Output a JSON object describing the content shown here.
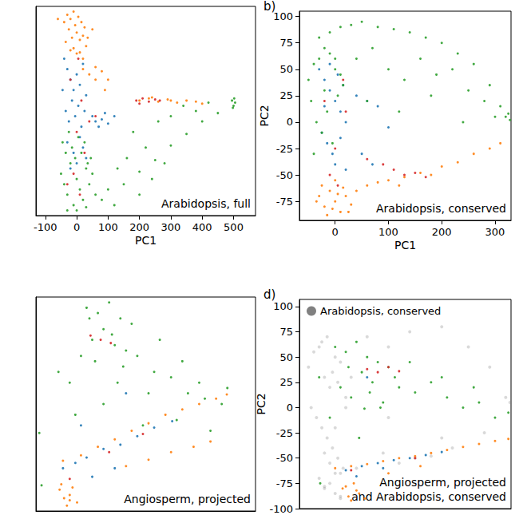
{
  "chart_data": [
    {
      "type": "scatter",
      "x_label": "PC1",
      "annotation": "Arabidopsis, full",
      "xlim": [
        -130,
        570
      ],
      "ylim": [
        -100,
        100
      ],
      "xticks": [
        -100,
        0,
        100,
        200,
        300,
        400,
        500
      ],
      "tick_labels": "x",
      "grid": false,
      "series": [
        {
          "color": "#ff7f0e",
          "x": [
            -40,
            -30,
            -25,
            -20,
            -15,
            -10,
            -5,
            0,
            5,
            10,
            15,
            20,
            25,
            30,
            -35,
            -20,
            -10,
            0,
            10,
            20,
            35,
            -60,
            50,
            20,
            40,
            60,
            80,
            100,
            60,
            90,
            200,
            230,
            260,
            290,
            320,
            350,
            380,
            400,
            240,
            300
          ],
          "values": [
            85,
            92,
            78,
            88,
            70,
            95,
            82,
            75,
            90,
            68,
            85,
            72,
            80,
            62,
            66,
            58,
            60,
            55,
            56,
            50,
            70,
            88,
            78,
            40,
            35,
            42,
            38,
            30,
            30,
            20,
            10,
            12,
            9,
            11,
            8,
            10,
            9,
            7,
            13,
            10
          ]
        },
        {
          "color": "#1f77b4",
          "x": [
            -40,
            -30,
            -20,
            -10,
            0,
            10,
            20,
            30,
            -35,
            -25,
            -15,
            -5,
            5,
            15,
            25,
            -30,
            -10,
            10,
            30,
            50,
            60,
            80,
            100,
            120,
            70,
            90,
            -20,
            0,
            20,
            -45
          ],
          "values": [
            50,
            40,
            30,
            20,
            35,
            25,
            45,
            15,
            0,
            -10,
            10,
            -5,
            5,
            -15,
            0,
            -30,
            -40,
            -25,
            -45,
            -5,
            -10,
            -8,
            -12,
            -5,
            -15,
            -2,
            -55,
            -50,
            -35,
            20
          ]
        },
        {
          "color": "#d62728",
          "x": [
            -20,
            0,
            15,
            -10,
            25,
            40,
            -30,
            5,
            190,
            210,
            230,
            250,
            265,
            200,
            60,
            10
          ],
          "values": [
            30,
            -20,
            10,
            -60,
            -40,
            -10,
            -70,
            50,
            10,
            12,
            9,
            11,
            10,
            7,
            -5,
            -80
          ]
        },
        {
          "color": "#2ca02c",
          "x": [
            -50,
            -40,
            -30,
            -20,
            -10,
            0,
            10,
            20,
            30,
            40,
            50,
            60,
            -45,
            -35,
            -25,
            -15,
            -5,
            5,
            15,
            25,
            35,
            45,
            -30,
            0,
            30,
            80,
            100,
            120,
            150,
            200,
            250,
            300,
            350,
            400,
            450,
            180,
            220,
            260,
            300,
            340,
            380,
            420,
            160,
            200,
            240,
            280,
            130,
            495,
            500,
            505,
            498,
            502
          ],
          "values": [
            -60,
            -70,
            -80,
            -50,
            -90,
            -65,
            -75,
            -85,
            -55,
            -70,
            -60,
            -80,
            -30,
            -40,
            -20,
            -35,
            -45,
            -25,
            -40,
            -30,
            -50,
            -45,
            -95,
            -95,
            -92,
            -85,
            -75,
            -90,
            -70,
            -58,
            -47,
            -33,
            -22,
            -10,
            -2,
            -20,
            -35,
            -10,
            -5,
            5,
            0,
            8,
            -45,
            -80,
            -65,
            -50,
            -55,
            10,
            5,
            8,
            3,
            12
          ]
        }
      ]
    },
    {
      "type": "scatter",
      "title": "b)",
      "x_label": "PC1",
      "y_label": "PC2",
      "annotation": "Arabidopsis, conserved",
      "xlim": [
        -67,
        330
      ],
      "ylim": [
        -93,
        105
      ],
      "xticks": [
        0,
        100,
        200,
        300
      ],
      "yticks": [
        -75,
        -50,
        -25,
        0,
        25,
        50,
        75,
        100
      ],
      "grid": false,
      "series": [
        {
          "color": "#ff7f0e",
          "x": [
            -30,
            -20,
            -10,
            0,
            10,
            20,
            30,
            -25,
            -15,
            -5,
            5,
            15,
            25,
            -35,
            0,
            40,
            60,
            80,
            100,
            130,
            160,
            200,
            230,
            260,
            290,
            310,
            120,
            180
          ],
          "values": [
            -70,
            -80,
            -65,
            -75,
            -85,
            -70,
            -78,
            -60,
            -88,
            -82,
            -68,
            -62,
            -85,
            -75,
            -55,
            -65,
            -60,
            -57,
            -55,
            -52,
            -48,
            -42,
            -38,
            -30,
            -25,
            -20,
            -60,
            -50
          ]
        },
        {
          "color": "#1f77b4",
          "x": [
            -30,
            -20,
            -10,
            0,
            10,
            20,
            -25,
            -15,
            -5,
            5,
            15,
            -20,
            0,
            20,
            40,
            60,
            80,
            100,
            50,
            70,
            -10,
            10
          ],
          "values": [
            50,
            40,
            30,
            20,
            10,
            0,
            -10,
            -20,
            -30,
            45,
            35,
            15,
            -40,
            -45,
            25,
            20,
            15,
            -5,
            -30,
            -40,
            55,
            -15
          ]
        },
        {
          "color": "#d62728",
          "x": [
            -20,
            0,
            15,
            -10,
            20,
            90,
            110,
            130,
            150,
            170,
            60,
            5
          ],
          "values": [
            20,
            -25,
            40,
            -50,
            10,
            -40,
            -45,
            -50,
            -48,
            -52,
            -35,
            -60
          ]
        },
        {
          "color": "#2ca02c",
          "x": [
            -50,
            -40,
            -30,
            -20,
            -10,
            0,
            10,
            -45,
            -35,
            -25,
            -15,
            -5,
            5,
            15,
            -40,
            -20,
            0,
            -30,
            -10,
            10,
            30,
            50,
            80,
            110,
            140,
            170,
            200,
            230,
            260,
            290,
            40,
            70,
            100,
            130,
            160,
            190,
            220,
            250,
            280,
            310,
            320,
            325,
            328,
            60,
            120,
            180,
            240,
            300
          ],
          "values": [
            40,
            55,
            60,
            30,
            65,
            50,
            45,
            20,
            0,
            -10,
            10,
            -20,
            25,
            35,
            -30,
            70,
            60,
            80,
            85,
            90,
            92,
            95,
            90,
            88,
            85,
            80,
            75,
            65,
            55,
            35,
            60,
            70,
            50,
            40,
            60,
            45,
            50,
            30,
            20,
            15,
            5,
            8,
            2,
            20,
            10,
            25,
            0,
            5
          ]
        }
      ]
    },
    {
      "type": "scatter",
      "annotation": "Angiosperm, projected",
      "xlim": [
        -60,
        330
      ],
      "ylim": [
        -100,
        100
      ],
      "tick_labels": false,
      "grid": false,
      "series": [
        {
          "color": "#2ca02c",
          "x": [
            30,
            50,
            70,
            90,
            110,
            40,
            60,
            80,
            100,
            20,
            45,
            75,
            95,
            0,
            -20,
            120,
            150,
            180,
            210,
            240,
            270,
            280,
            10,
            60,
            130,
            160,
            200,
            230,
            -54,
            -50,
            35,
            85,
            140,
            190,
            250
          ],
          "values": [
            90,
            85,
            95,
            80,
            75,
            60,
            70,
            55,
            50,
            45,
            40,
            65,
            35,
            20,
            30,
            45,
            30,
            25,
            10,
            5,
            0,
            15,
            -10,
            0,
            -20,
            60,
            40,
            20,
            -27,
            -76,
            80,
            20,
            10,
            -15,
            -25
          ]
        },
        {
          "color": "#ff7f0e",
          "x": [
            -18,
            -10,
            -5,
            0,
            5,
            13,
            -15,
            0,
            -12,
            20,
            50,
            80,
            110,
            140,
            170,
            200,
            230,
            260,
            279,
            100,
            140,
            180,
            220,
            250
          ],
          "values": [
            -80,
            -88,
            -95,
            -85,
            -78,
            -92,
            -75,
            -90,
            -53,
            -48,
            -40,
            -33,
            -25,
            -18,
            -10,
            -5,
            0,
            5,
            9,
            -58,
            -52,
            -45,
            -40,
            -35
          ]
        },
        {
          "color": "#1f77b4",
          "x": [
            -12,
            10,
            30,
            60,
            90,
            120,
            150,
            182,
            40,
            80,
            20,
            100
          ],
          "values": [
            -60,
            -55,
            -50,
            -42,
            -38,
            -30,
            -22,
            -16,
            -68,
            -60,
            -20,
            10
          ]
        },
        {
          "color": "#d62728",
          "x": [
            37,
            55,
            73,
            0,
            70,
            130
          ],
          "values": [
            64,
            60,
            57,
            -70,
            -45,
            -28
          ]
        }
      ]
    },
    {
      "type": "scatter",
      "title": "d)",
      "y_label": "PC2",
      "annotation": [
        "Angiosperm, projected",
        "and Arabidopsis, conserved"
      ],
      "xlim": [
        -67,
        330
      ],
      "ylim": [
        -100,
        107
      ],
      "yticks": [
        -100,
        -75,
        -50,
        -25,
        0,
        25,
        50,
        75,
        100
      ],
      "tick_labels": "y",
      "grid": false,
      "legend": "upper left",
      "series": [
        {
          "name": "Arabidopsis, conserved",
          "color": "#808080",
          "x": [
            -50,
            -40,
            -30,
            -20,
            -10,
            0,
            10,
            20,
            -45,
            -35,
            -25,
            -15,
            -5,
            5,
            15,
            -30,
            -20,
            -10,
            0,
            10,
            -25,
            -15,
            -5,
            5,
            -20,
            0,
            20,
            -10,
            10,
            60,
            100,
            140,
            200,
            250,
            290,
            320,
            328,
            220,
            180,
            150,
            120,
            90,
            40,
            0,
            -20,
            10,
            30,
            100,
            200,
            280
          ],
          "values": [
            40,
            55,
            60,
            30,
            20,
            50,
            45,
            10,
            0,
            -10,
            -20,
            -30,
            -40,
            -50,
            -60,
            -70,
            -80,
            -75,
            -85,
            -65,
            65,
            70,
            35,
            25,
            -45,
            -20,
            0,
            -55,
            -88,
            70,
            60,
            75,
            80,
            60,
            40,
            10,
            5,
            -40,
            -48,
            -50,
            -55,
            -45,
            -60,
            -65,
            -78,
            -90,
            30,
            -10,
            -30,
            -25
          ]
        },
        {
          "color": "#2ca02c",
          "x": [
            0,
            20,
            40,
            60,
            80,
            100,
            112,
            10,
            30,
            50,
            70,
            90,
            -30,
            -10,
            120,
            150,
            180,
            210,
            240,
            270,
            300,
            325,
            25,
            55,
            85,
            140,
            200,
            260,
            -28,
            65,
            45
          ],
          "values": [
            60,
            55,
            65,
            50,
            45,
            40,
            30,
            20,
            10,
            35,
            25,
            5,
            30,
            -10,
            20,
            15,
            25,
            10,
            0,
            5,
            -10,
            -5,
            40,
            -1,
            0,
            45,
            30,
            20,
            -75,
            15,
            -30
          ]
        },
        {
          "color": "#ff7f0e",
          "x": [
            14,
            25,
            35,
            45,
            56,
            20,
            40,
            30,
            0,
            30,
            60,
            90,
            120,
            150,
            180,
            210,
            240,
            270,
            300,
            325,
            100,
            160
          ],
          "values": [
            -80,
            -88,
            -75,
            -85,
            -90,
            -78,
            -82,
            -92,
            -60,
            -58,
            -56,
            -53,
            -50,
            -48,
            -45,
            -42,
            -39,
            -36,
            -33,
            -31,
            -65,
            -58
          ]
        },
        {
          "color": "#1f77b4",
          "x": [
            20,
            50,
            80,
            110,
            140,
            170,
            200,
            40,
            90,
            60
          ],
          "values": [
            -62,
            -58,
            -55,
            -52,
            -50,
            -47,
            -44,
            -68,
            -60,
            30
          ]
        },
        {
          "color": "#d62728",
          "x": [
            60,
            80,
            100,
            120,
            30,
            150
          ],
          "values": [
            38,
            35,
            40,
            36,
            -62,
            -50
          ]
        }
      ]
    }
  ]
}
